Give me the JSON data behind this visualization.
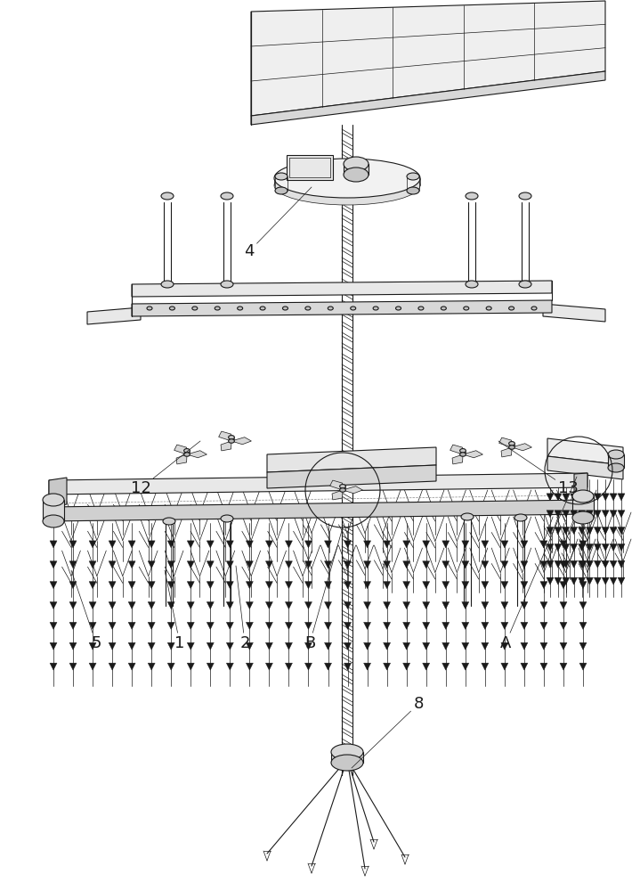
{
  "bg_color": "#ffffff",
  "line_color": "#1a1a1a",
  "lw": 0.8,
  "lw_thin": 0.5,
  "lw_thick": 1.2,
  "label_fontsize": 13,
  "fig_w": 7.19,
  "fig_h": 10.0,
  "dpi": 100
}
